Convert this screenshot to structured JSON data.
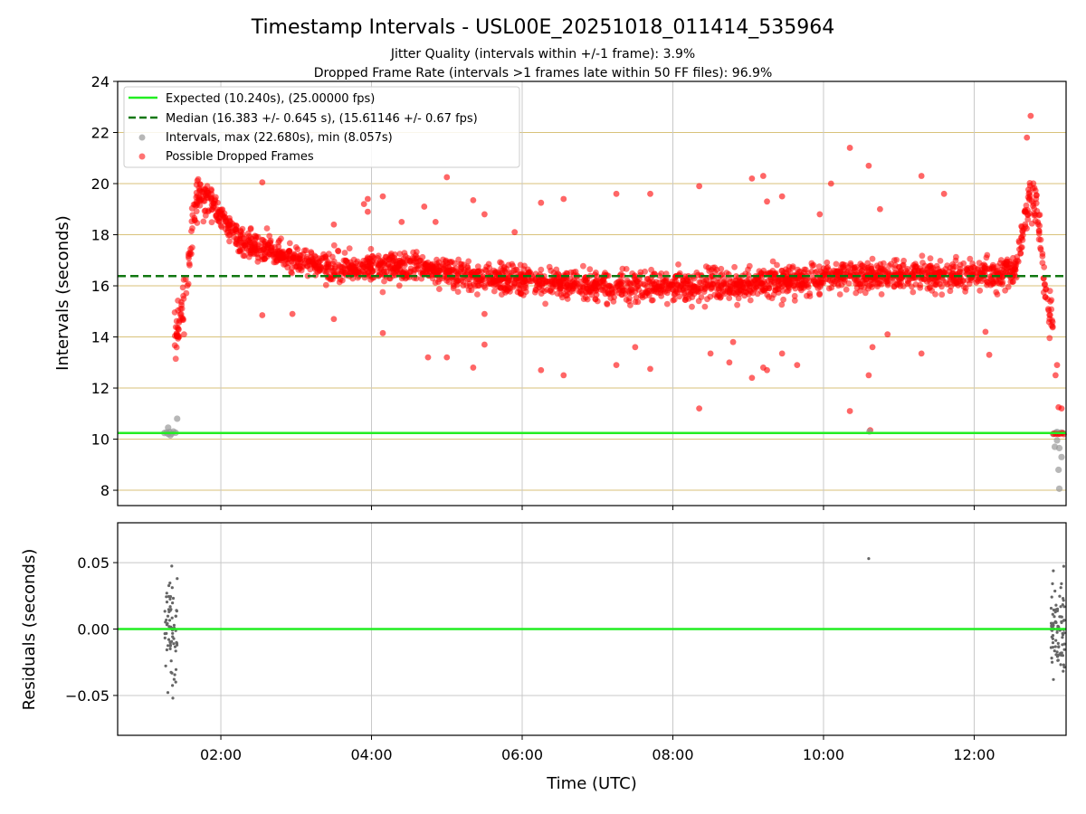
{
  "chart_data": {
    "type": "scatter",
    "title": "Timestamp Intervals - USL00E_20251018_011414_535964",
    "subtitle_lines": [
      "Jitter Quality (intervals within +/-1 frame): 3.9%",
      "Dropped Frame Rate (intervals >1 frames late within 50 FF files): 96.9%"
    ],
    "xlabel": "Time (UTC)",
    "x_ticks": [
      "02:00",
      "04:00",
      "06:00",
      "08:00",
      "10:00",
      "12:00"
    ],
    "x_tick_hours": [
      2,
      4,
      6,
      8,
      10,
      12
    ],
    "xlim_hours": [
      0.63,
      13.22
    ],
    "top_panel": {
      "ylabel": "Intervals (seconds)",
      "ylim": [
        7.4,
        24
      ],
      "y_ticks": [
        8,
        10,
        12,
        14,
        16,
        18,
        20,
        22,
        24
      ],
      "expected_interval": 10.24,
      "median_interval": 16.383,
      "legend": [
        "Expected (10.240s), (25.00000 fps)",
        "Median (16.383 +/- 0.645 s), (15.61146 +/- 0.67 fps)",
        "Intervals, max (22.680s), min (8.057s)",
        "Possible Dropped Frames"
      ],
      "intervals_trend": [
        [
          1.38,
          13.6
        ],
        [
          1.45,
          14.8
        ],
        [
          1.55,
          16.2
        ],
        [
          1.62,
          18.3
        ],
        [
          1.68,
          19.5
        ],
        [
          1.85,
          19.4
        ],
        [
          1.95,
          19.0
        ],
        [
          2.05,
          18.4
        ],
        [
          2.3,
          17.7
        ],
        [
          2.6,
          17.4
        ],
        [
          3.0,
          17.0
        ],
        [
          3.5,
          16.7
        ],
        [
          4.0,
          16.7
        ],
        [
          4.5,
          16.7
        ],
        [
          5.0,
          16.5
        ],
        [
          5.5,
          16.3
        ],
        [
          6.0,
          16.2
        ],
        [
          6.5,
          16.1
        ],
        [
          7.0,
          16.0
        ],
        [
          7.5,
          15.95
        ],
        [
          8.0,
          15.95
        ],
        [
          8.5,
          16.0
        ],
        [
          9.0,
          16.1
        ],
        [
          9.5,
          16.2
        ],
        [
          10.0,
          16.3
        ],
        [
          10.5,
          16.4
        ],
        [
          11.0,
          16.4
        ],
        [
          11.5,
          16.4
        ],
        [
          12.0,
          16.4
        ],
        [
          12.3,
          16.4
        ],
        [
          12.55,
          16.7
        ],
        [
          12.65,
          18.2
        ],
        [
          12.73,
          19.4
        ],
        [
          12.8,
          19.5
        ],
        [
          12.85,
          18.6
        ],
        [
          12.92,
          16.3
        ],
        [
          12.98,
          15.2
        ],
        [
          13.05,
          14.2
        ]
      ],
      "outliers": [
        [
          2.55,
          20.05
        ],
        [
          2.55,
          14.85
        ],
        [
          2.95,
          14.9
        ],
        [
          3.5,
          14.7
        ],
        [
          3.5,
          18.4
        ],
        [
          3.9,
          19.2
        ],
        [
          3.95,
          19.4
        ],
        [
          3.95,
          18.9
        ],
        [
          4.15,
          19.5
        ],
        [
          4.15,
          14.15
        ],
        [
          4.4,
          18.5
        ],
        [
          4.7,
          19.1
        ],
        [
          4.75,
          13.2
        ],
        [
          4.85,
          18.5
        ],
        [
          5.0,
          20.25
        ],
        [
          5.0,
          13.2
        ],
        [
          5.35,
          19.35
        ],
        [
          5.35,
          12.8
        ],
        [
          5.5,
          18.8
        ],
        [
          5.5,
          13.7
        ],
        [
          5.5,
          14.9
        ],
        [
          5.9,
          18.1
        ],
        [
          6.25,
          19.25
        ],
        [
          6.25,
          12.7
        ],
        [
          6.55,
          19.4
        ],
        [
          6.55,
          12.5
        ],
        [
          7.25,
          19.6
        ],
        [
          7.25,
          12.9
        ],
        [
          7.5,
          13.6
        ],
        [
          7.7,
          19.6
        ],
        [
          7.7,
          12.75
        ],
        [
          8.35,
          19.9
        ],
        [
          8.35,
          11.2
        ],
        [
          8.5,
          13.35
        ],
        [
          8.75,
          13.0
        ],
        [
          8.8,
          13.8
        ],
        [
          9.05,
          20.2
        ],
        [
          9.05,
          12.4
        ],
        [
          9.2,
          20.3
        ],
        [
          9.2,
          12.8
        ],
        [
          9.25,
          19.3
        ],
        [
          9.25,
          12.7
        ],
        [
          9.45,
          19.5
        ],
        [
          9.45,
          13.35
        ],
        [
          9.65,
          12.9
        ],
        [
          9.95,
          18.8
        ],
        [
          10.1,
          20.0
        ],
        [
          10.35,
          21.4
        ],
        [
          10.35,
          11.1
        ],
        [
          10.6,
          20.7
        ],
        [
          10.6,
          12.5
        ],
        [
          10.65,
          13.6
        ],
        [
          10.75,
          19.0
        ],
        [
          10.85,
          14.1
        ],
        [
          11.3,
          20.3
        ],
        [
          11.3,
          13.35
        ],
        [
          11.6,
          19.6
        ],
        [
          12.15,
          14.2
        ],
        [
          12.2,
          13.3
        ],
        [
          12.75,
          22.65
        ],
        [
          12.7,
          21.8
        ],
        [
          10.62,
          10.35
        ],
        [
          13.08,
          12.5
        ],
        [
          13.12,
          11.25
        ],
        [
          13.16,
          11.2
        ],
        [
          13.1,
          12.9
        ]
      ],
      "expected_points": [
        [
          1.25,
          10.24
        ],
        [
          1.28,
          10.26
        ],
        [
          1.3,
          10.2
        ],
        [
          1.32,
          10.28
        ],
        [
          1.35,
          10.22
        ],
        [
          1.37,
          10.3
        ],
        [
          1.4,
          10.25
        ],
        [
          1.3,
          10.45
        ],
        [
          1.42,
          10.8
        ],
        [
          1.33,
          10.15
        ],
        [
          13.05,
          10.2
        ],
        [
          13.08,
          10.25
        ],
        [
          13.1,
          10.28
        ],
        [
          13.12,
          10.22
        ],
        [
          13.15,
          10.26
        ],
        [
          13.18,
          10.24
        ],
        [
          13.1,
          9.95
        ],
        [
          13.07,
          9.7
        ],
        [
          13.13,
          9.65
        ],
        [
          13.16,
          9.3
        ],
        [
          13.12,
          8.8
        ],
        [
          13.13,
          8.06
        ],
        [
          10.61,
          10.3
        ]
      ]
    },
    "bottom_panel": {
      "ylabel": "Residuals (seconds)",
      "ylim": [
        -0.08,
        0.08
      ],
      "y_ticks": [
        "0.05",
        "0.00",
        "−0.05"
      ],
      "y_tick_values": [
        0.05,
        0.0,
        -0.05
      ],
      "zero_line": 0.0,
      "residual_clusters": [
        {
          "x_hours": [
            1.25,
            1.42
          ],
          "count": 70,
          "spread": 0.052
        },
        {
          "x_hours": [
            13.02,
            13.2
          ],
          "count": 90,
          "spread": 0.052
        }
      ],
      "single_points": [
        [
          10.6,
          0.053
        ]
      ]
    },
    "colors": {
      "expected_line": "#22ee22",
      "median_line": "#117711",
      "dropped": "#ff0000",
      "interval": "#999999",
      "residual": "#666666",
      "hgrid_top": "#d9c27a",
      "grid": "#c8c8c8"
    }
  }
}
